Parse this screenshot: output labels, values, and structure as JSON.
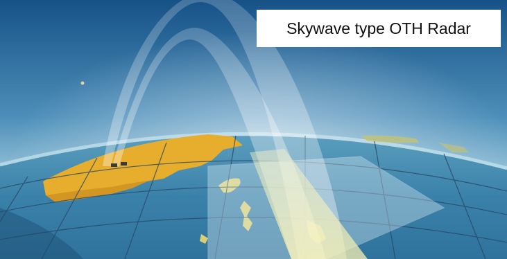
{
  "caption": {
    "text": "Skywave type OTH Radar"
  },
  "colors": {
    "sky_top": "#1f5f95",
    "sky_bottom": "#cfe6ee",
    "ocean": "#3f86ad",
    "land": "#e7ad2c",
    "grid": "#2a4a66",
    "beam": "#ffffff"
  }
}
